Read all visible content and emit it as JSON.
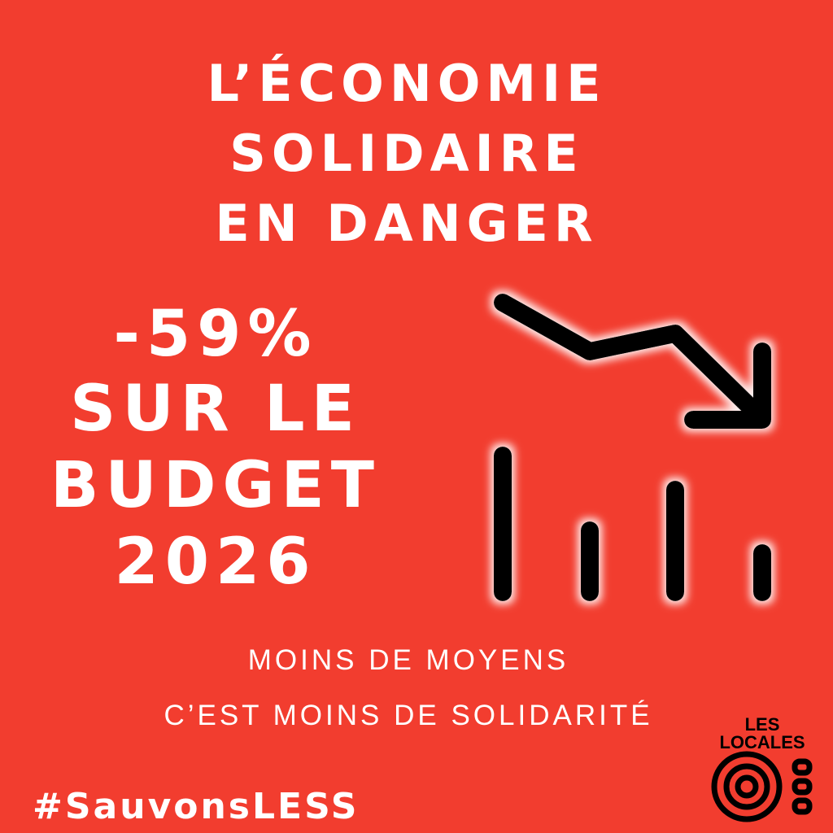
{
  "title": {
    "lines": [
      "L’ÉCONOMIE",
      "SOLIDAIRE",
      "EN DANGER"
    ]
  },
  "headline": {
    "lines": [
      "-59%",
      "SUR LE",
      "BUDGET",
      "2026"
    ]
  },
  "subtitle": {
    "lines": [
      "MOINS DE MOYENS",
      "C’EST MOINS DE SOLIDARITÉ"
    ]
  },
  "hashtag": "#SauvonsLESS",
  "icon": "declining-bar-chart-arrow-icon",
  "logo": {
    "text": [
      "LES",
      "LOCALES"
    ]
  },
  "colors": {
    "background": "#f23d2f",
    "text": "#ffffff",
    "icon": "#000000"
  }
}
